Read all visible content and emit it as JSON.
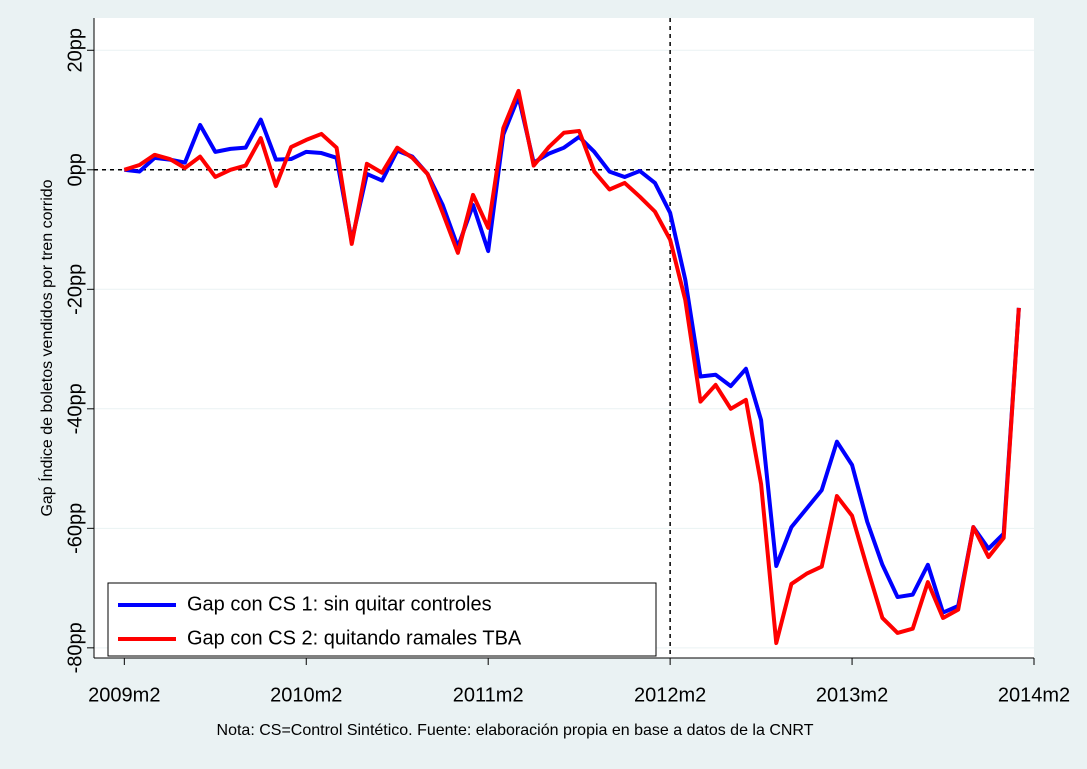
{
  "chart_data": {
    "type": "line",
    "y_label": "Gap Índice de boletos vendidos por tren corrido",
    "note": "Nota: CS=Control Sintético. Fuente: elaboración propia en base a datos de la CNRT",
    "x": [
      589,
      590,
      591,
      592,
      593,
      594,
      595,
      596,
      597,
      598,
      599,
      600,
      601,
      602,
      603,
      604,
      605,
      606,
      607,
      608,
      609,
      610,
      611,
      612,
      613,
      614,
      615,
      616,
      617,
      618,
      619,
      620,
      621,
      622,
      623,
      624,
      625,
      626,
      627,
      628,
      629,
      630,
      631,
      632,
      633,
      634,
      635,
      636,
      637,
      638,
      639,
      640,
      641,
      642,
      643,
      644,
      645,
      646,
      647,
      648
    ],
    "xlim": [
      587,
      649
    ],
    "xticks": [
      {
        "value": 589,
        "label": "2009m2"
      },
      {
        "value": 601,
        "label": "2010m2"
      },
      {
        "value": 613,
        "label": "2011m2"
      },
      {
        "value": 625,
        "label": "2012m2"
      },
      {
        "value": 637,
        "label": "2013m2"
      },
      {
        "value": 649,
        "label": "2014m2"
      }
    ],
    "ylim": [
      -81.7,
      25.4
    ],
    "yticks": [
      {
        "value": 20,
        "label": "20pp"
      },
      {
        "value": 0,
        "label": "0pp"
      },
      {
        "value": -20,
        "label": "-20pp"
      },
      {
        "value": -40,
        "label": "-40pp"
      },
      {
        "value": -60,
        "label": "-60pp"
      },
      {
        "value": -80,
        "label": "-80pp"
      }
    ],
    "xline": 625,
    "yline": 0,
    "grid": true,
    "legend": "bottom-left",
    "series": [
      {
        "name": "Gap con CS 1: sin quitar controles",
        "color": "#0000ff",
        "values": [
          0,
          -0.3,
          2,
          1.7,
          1.2,
          7.5,
          3,
          3.5,
          3.7,
          8.4,
          1.7,
          1.8,
          3,
          2.8,
          2,
          -11.9,
          -0.7,
          -1.8,
          3.2,
          2.2,
          -0.7,
          -5.9,
          -12.9,
          -5.9,
          -13.6,
          5.9,
          12.2,
          1.2,
          2.7,
          3.7,
          5.5,
          3,
          -0.3,
          -1.2,
          -0.2,
          -2.2,
          -7.2,
          -18.4,
          -34.6,
          -34.3,
          -36.2,
          -33.3,
          -41.9,
          -66.3,
          -59.8,
          -56.7,
          -53.6,
          -45.5,
          -49.4,
          -58.9,
          -66.1,
          -71.5,
          -71.1,
          -66.1,
          -74.1,
          -73,
          -59.8,
          -63.4,
          -60.9,
          -23.1
        ]
      },
      {
        "name": "Gap con CS 2: quitando ramales TBA",
        "color": "#ff0000",
        "values": [
          0,
          0.8,
          2.5,
          1.8,
          0.3,
          2.2,
          -1.2,
          0,
          0.7,
          5.3,
          -2.7,
          3.8,
          5,
          6,
          3.7,
          -12.4,
          1,
          -0.5,
          3.7,
          2,
          -0.7,
          -7.2,
          -13.9,
          -4.2,
          -9.7,
          7,
          13.2,
          0.7,
          3.8,
          6.2,
          6.5,
          -0.3,
          -3.3,
          -2.2,
          -4.5,
          -7,
          -11.7,
          -21.8,
          -38.8,
          -36,
          -40,
          -38.5,
          -52.6,
          -79.2,
          -69.3,
          -67.6,
          -66.4,
          -54.6,
          -57.9,
          -66.6,
          -75,
          -77.5,
          -76.8,
          -69,
          -75,
          -73.6,
          -59.8,
          -64.8,
          -61.6,
          -23.1
        ]
      }
    ]
  }
}
